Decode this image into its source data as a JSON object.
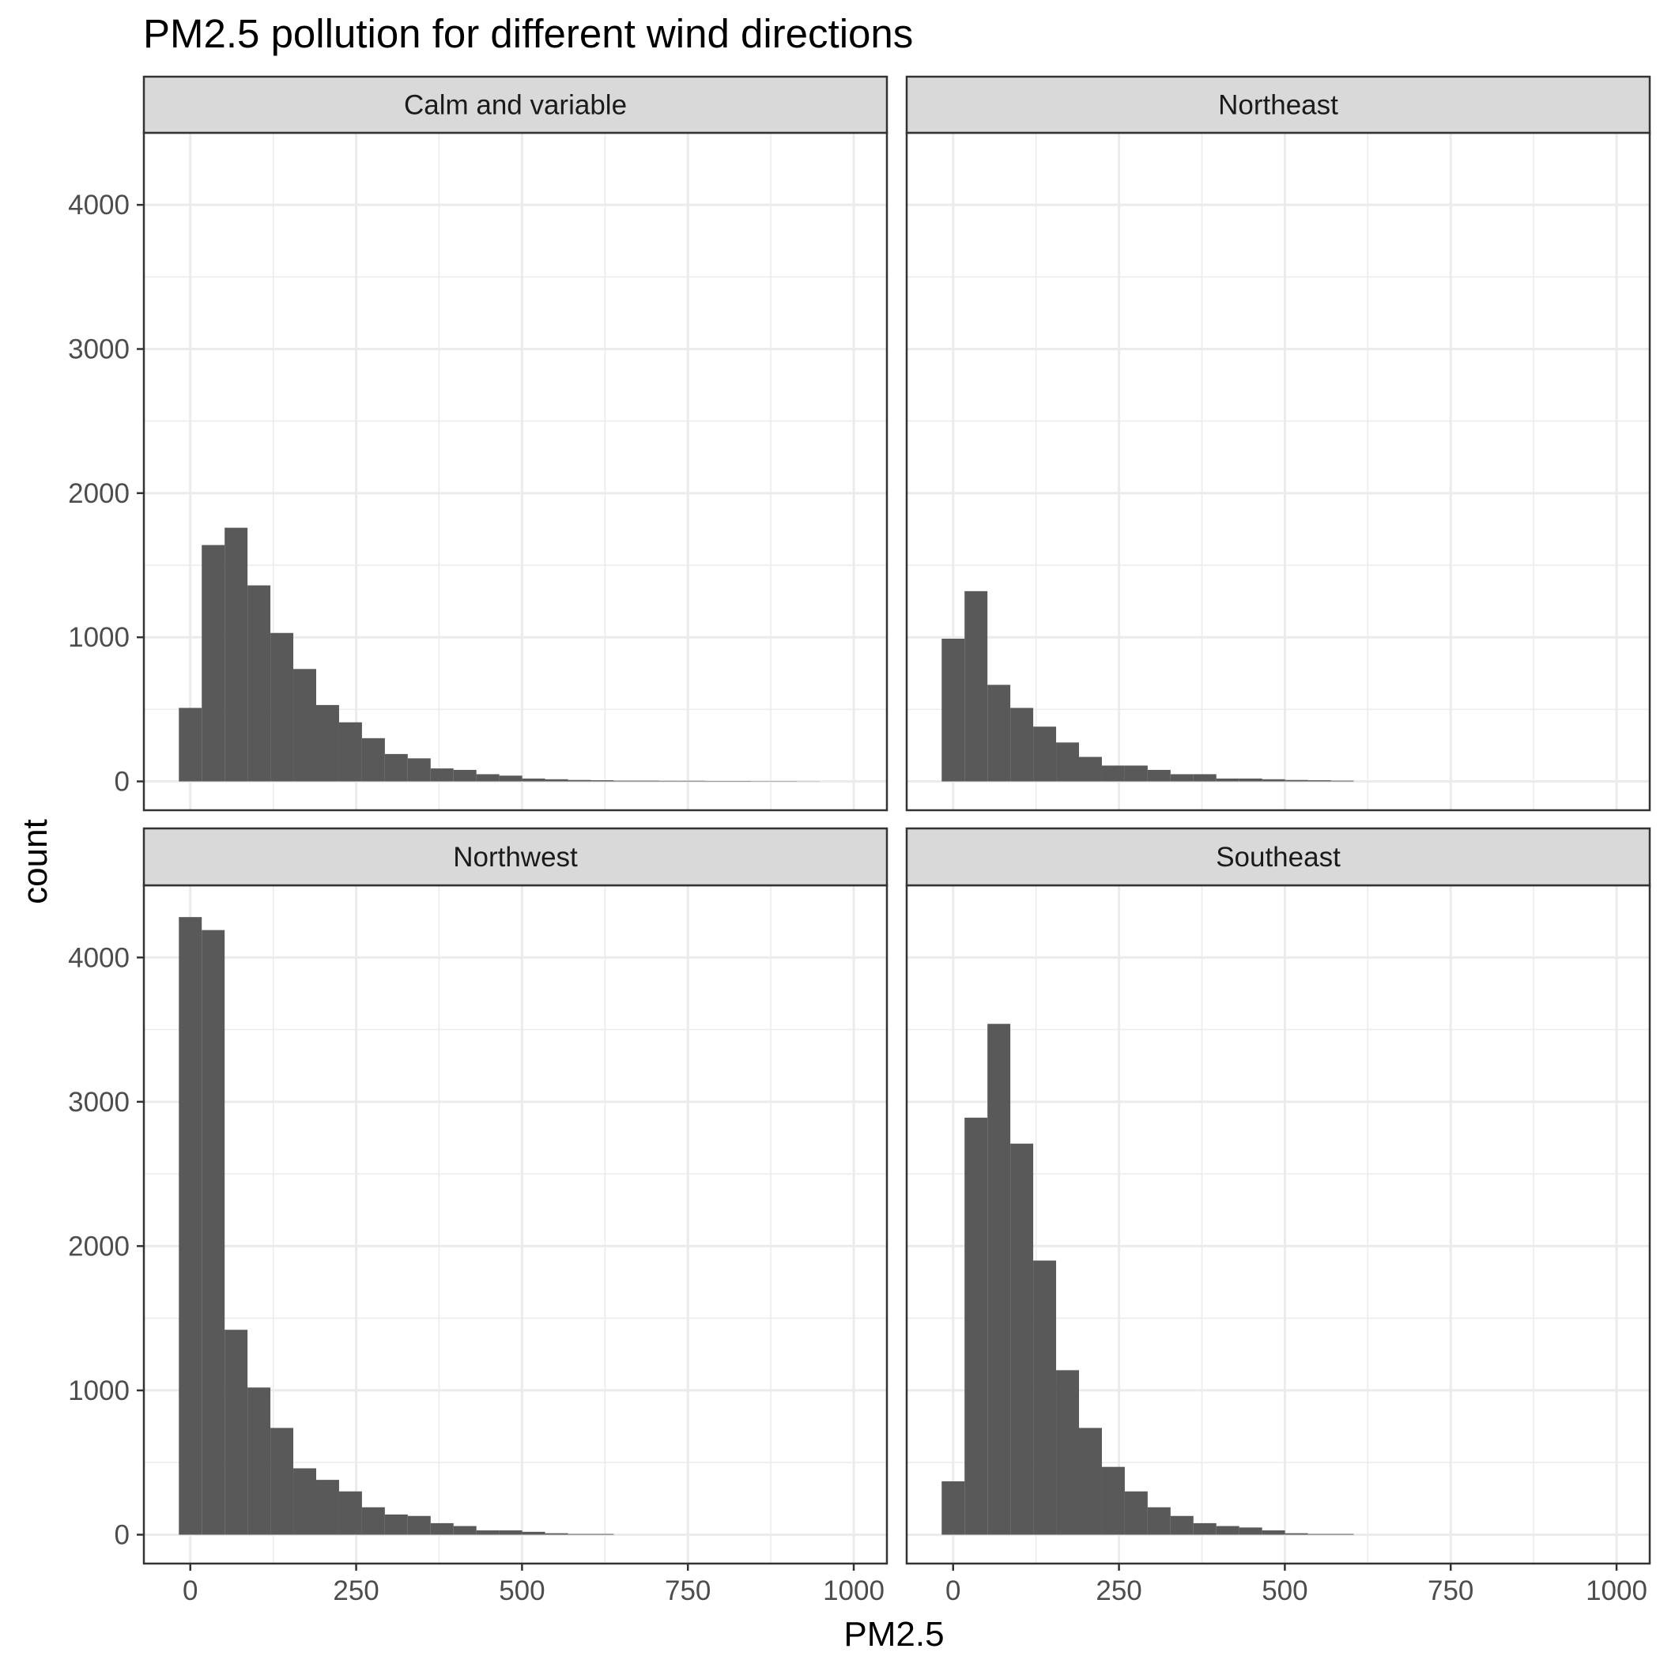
{
  "chart_data": {
    "type": "bar",
    "subtype": "faceted-histogram",
    "title": "PM2.5 pollution for different wind directions",
    "xlabel": "PM2.5",
    "ylabel": "count",
    "xlim": [
      -70,
      1050
    ],
    "ylim": [
      -200,
      4500
    ],
    "x_ticks": [
      0,
      250,
      500,
      750,
      1000
    ],
    "x_tick_labels": [
      "0",
      "250",
      "500",
      "750",
      "1000"
    ],
    "y_ticks": [
      0,
      1000,
      2000,
      3000,
      4000
    ],
    "y_tick_labels": [
      "0",
      "1000",
      "2000",
      "3000",
      "4000"
    ],
    "grid": true,
    "bar_color": "#595959",
    "panel_background": "#ffffff",
    "strip_fill": "#d9d9d9",
    "grid_color": "#ebebeb",
    "bin_width": 34.5,
    "bin_start": -17.25,
    "facets": [
      {
        "name": "Calm and variable",
        "values": [
          510,
          1640,
          1760,
          1360,
          1030,
          780,
          530,
          410,
          300,
          190,
          160,
          90,
          80,
          50,
          40,
          20,
          15,
          10,
          8,
          5,
          5,
          4,
          4,
          3,
          3,
          2,
          2,
          1,
          0,
          0
        ]
      },
      {
        "name": "Northeast",
        "values": [
          990,
          1320,
          670,
          510,
          380,
          270,
          170,
          110,
          110,
          80,
          50,
          50,
          20,
          20,
          15,
          10,
          8,
          5,
          0,
          0,
          0,
          0,
          0,
          0,
          0,
          0,
          0,
          0,
          0,
          0
        ]
      },
      {
        "name": "Northwest",
        "values": [
          4280,
          4190,
          1420,
          1020,
          740,
          460,
          380,
          300,
          190,
          140,
          130,
          80,
          60,
          30,
          30,
          20,
          10,
          5,
          5,
          0,
          0,
          0,
          0,
          0,
          0,
          0,
          0,
          0,
          0,
          0
        ]
      },
      {
        "name": "Southeast",
        "values": [
          370,
          2890,
          3540,
          2710,
          1900,
          1140,
          740,
          470,
          300,
          190,
          130,
          80,
          60,
          50,
          30,
          10,
          5,
          5,
          0,
          0,
          0,
          0,
          0,
          0,
          0,
          0,
          0,
          0,
          0,
          0
        ]
      }
    ]
  }
}
